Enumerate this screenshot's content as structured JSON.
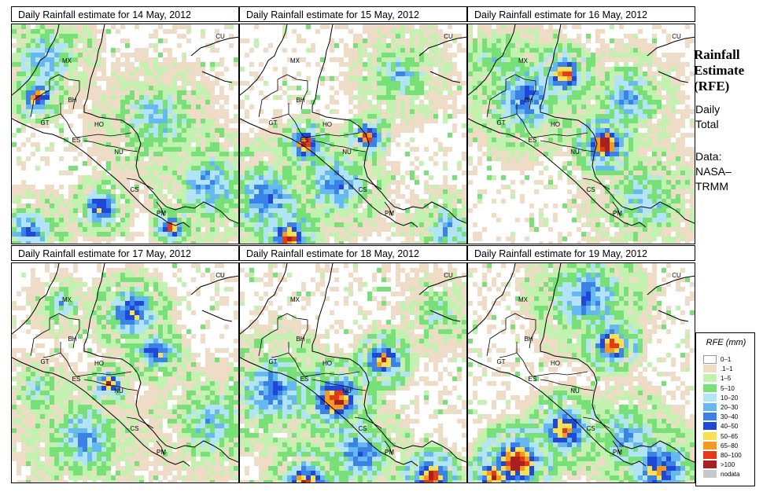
{
  "panels": [
    {
      "title": "Daily Rainfall estimate for  14 May, 2012",
      "pattern": 0
    },
    {
      "title": "Daily Rainfall estimate for  15 May, 2012",
      "pattern": 1
    },
    {
      "title": "Daily Rainfall estimate for  16 May, 2012",
      "pattern": 2
    },
    {
      "title": "Daily Rainfall estimate for  17 May, 2012",
      "pattern": 3
    },
    {
      "title": "Daily Rainfall estimate for  18 May, 2012",
      "pattern": 4
    },
    {
      "title": "Daily Rainfall estimate for  19 May, 2012",
      "pattern": 5
    }
  ],
  "country_labels": [
    "MX",
    "BH",
    "GT",
    "HO",
    "ES",
    "NU",
    "CS",
    "PM",
    "CU"
  ],
  "sidebar": {
    "title_line1": "Rainfall",
    "title_line2": "Estimate",
    "title_line3": "(RFE)",
    "sub_line1": "Daily",
    "sub_line2": "Total",
    "data_line1": "Data:",
    "data_line2": "NASA–",
    "data_line3": "TRMM"
  },
  "legend": {
    "title": "RFE (mm)",
    "items": [
      {
        "label": "0–1",
        "color": "#ffffff"
      },
      {
        "label": ".1–1",
        "color": "#eedcc6"
      },
      {
        "label": "1–5",
        "color": "#c3f2b0"
      },
      {
        "label": "5–10",
        "color": "#77e077"
      },
      {
        "label": "10–20",
        "color": "#b3e3f7"
      },
      {
        "label": "20–30",
        "color": "#66b8f0"
      },
      {
        "label": "30–40",
        "color": "#3a82e8"
      },
      {
        "label": "40–50",
        "color": "#2048d8"
      },
      {
        "label": "50–65",
        "color": "#f8e050"
      },
      {
        "label": "65–80",
        "color": "#f59a20"
      },
      {
        "label": "80–100",
        "color": "#e43a1a"
      },
      {
        "label": ">100",
        "color": "#a82020"
      },
      {
        "label": "nodata",
        "color": "#c8c8c8"
      }
    ]
  }
}
